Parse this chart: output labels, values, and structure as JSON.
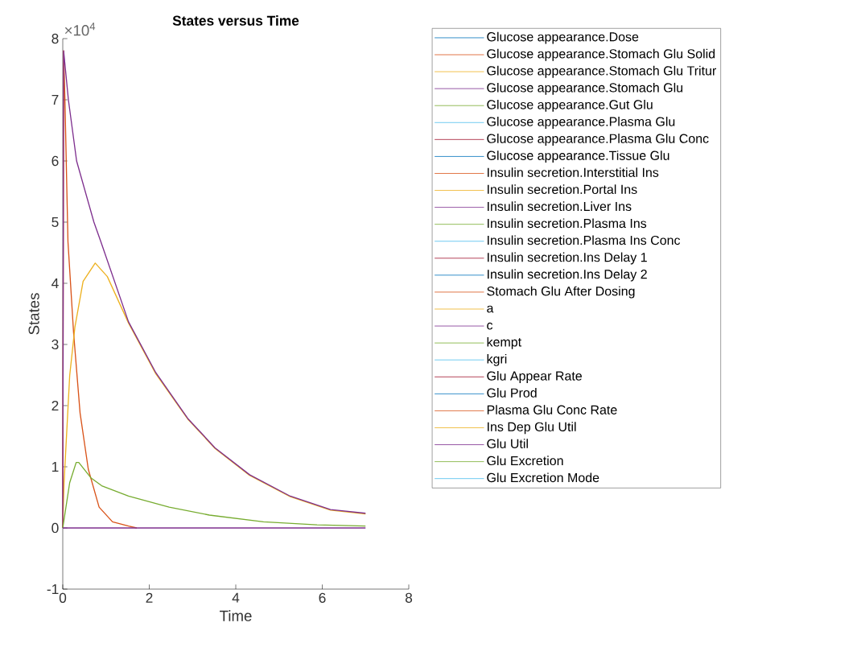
{
  "chart_data": {
    "type": "line",
    "title": "States versus Time",
    "xlabel": "Time",
    "ylabel": "States",
    "annotations": [
      "×10$^{4}$"
    ],
    "legend": "right",
    "xlim": [
      0,
      8
    ],
    "xticks": [
      0,
      2,
      4,
      6,
      8
    ],
    "ylim": [
      -1,
      8
    ],
    "yticks": [
      -1,
      0,
      1,
      2,
      3,
      4,
      5,
      6,
      7,
      8
    ],
    "series": [
      {
        "name": "Glucose appearance.Dose",
        "color": "#0072bd",
        "values": [
          null
        ]
      },
      {
        "name": "Glucose appearance.Stomach Glu Solid",
        "color": "#d95319",
        "x": [
          0,
          0.02,
          0.05,
          0.12,
          0.25,
          0.4,
          0.59,
          0.84,
          1.15,
          1.52,
          1.71
        ],
        "values": [
          0,
          7.8,
          7.0,
          4.68,
          3.19,
          1.88,
          0.96,
          0.34,
          0.1,
          0.03,
          0
        ]
      },
      {
        "name": "Glucose appearance.Stomach Glu Tritur",
        "color": "#edb120",
        "x": [
          0,
          0.03,
          0.16,
          0.28,
          0.47,
          0.75,
          1.03,
          1.52,
          2.15,
          2.89,
          3.52,
          4.32,
          5.26,
          6.19,
          7.0
        ],
        "values": [
          0,
          0.74,
          2.49,
          3.28,
          4.03,
          4.33,
          4.11,
          3.35,
          2.52,
          1.78,
          1.3,
          0.86,
          0.51,
          0.29,
          0.23
        ]
      },
      {
        "name": "Glucose appearance.Stomach Glu",
        "color": "#7e2f8e",
        "x": [
          0,
          0.02,
          0.13,
          0.32,
          0.72,
          0.88,
          1.52,
          2.15,
          2.89,
          3.52,
          4.32,
          5.26,
          6.19,
          7.0
        ],
        "values": [
          0,
          7.8,
          7.0,
          6.0,
          5.0,
          4.68,
          3.37,
          2.54,
          1.79,
          1.31,
          0.87,
          0.52,
          0.3,
          0.24
        ]
      },
      {
        "name": "Glucose appearance.Gut Glu",
        "color": "#77ac30",
        "x": [
          0,
          0.16,
          0.31,
          0.37,
          0.65,
          0.9,
          1.52,
          2.46,
          3.39,
          4.64,
          5.88,
          7.0
        ],
        "values": [
          0,
          0.74,
          1.07,
          1.07,
          0.82,
          0.69,
          0.52,
          0.34,
          0.21,
          0.1,
          0.05,
          0.03
        ]
      },
      {
        "name": "Glucose appearance.Plasma Glu",
        "color": "#4dbeee",
        "values": [
          null
        ]
      },
      {
        "name": "Glucose appearance.Plasma Glu Conc",
        "color": "#a2142f",
        "values": [
          null
        ]
      },
      {
        "name": "Glucose appearance.Tissue Glu",
        "color": "#0072bd",
        "values": [
          null
        ]
      },
      {
        "name": "Insulin secretion.Interstitial Ins",
        "color": "#d95319",
        "values": [
          null
        ]
      },
      {
        "name": "Insulin secretion.Portal Ins",
        "color": "#edb120",
        "values": [
          null
        ]
      },
      {
        "name": "Insulin secretion.Liver Ins",
        "color": "#7e2f8e",
        "values": [
          null
        ]
      },
      {
        "name": "Insulin secretion.Plasma Ins",
        "color": "#77ac30",
        "values": [
          null
        ]
      },
      {
        "name": "Insulin secretion.Plasma Ins Conc",
        "color": "#4dbeee",
        "values": [
          null
        ]
      },
      {
        "name": "Insulin secretion.Ins Delay 1",
        "color": "#a2142f",
        "values": [
          null
        ]
      },
      {
        "name": "Insulin secretion.Ins Delay 2",
        "color": "#0072bd",
        "values": [
          null
        ]
      },
      {
        "name": "Stomach Glu After Dosing",
        "color": "#d95319",
        "values": [
          null
        ]
      },
      {
        "name": "a",
        "color": "#edb120",
        "values": [
          null
        ]
      },
      {
        "name": "c",
        "color": "#7e2f8e",
        "values": [
          null
        ]
      },
      {
        "name": "kempt",
        "color": "#77ac30",
        "values": [
          null
        ]
      },
      {
        "name": "kgri",
        "color": "#4dbeee",
        "values": [
          null
        ]
      },
      {
        "name": "Glu Appear Rate",
        "color": "#a2142f",
        "values": [
          null
        ]
      },
      {
        "name": "Glu Prod",
        "color": "#0072bd",
        "values": [
          null
        ]
      },
      {
        "name": "Plasma Glu Conc Rate",
        "color": "#d95319",
        "values": [
          null
        ]
      },
      {
        "name": "Ins Dep Glu Util",
        "color": "#edb120",
        "values": [
          null
        ]
      },
      {
        "name": "Glu Util",
        "color": "#7e2f8e",
        "x": [
          0,
          7
        ],
        "values": [
          0,
          0
        ]
      },
      {
        "name": "Glu Excretion",
        "color": "#77ac30",
        "values": [
          null
        ]
      },
      {
        "name": "Glu Excretion Mode",
        "color": "#4dbeee",
        "values": [
          null
        ]
      }
    ]
  }
}
